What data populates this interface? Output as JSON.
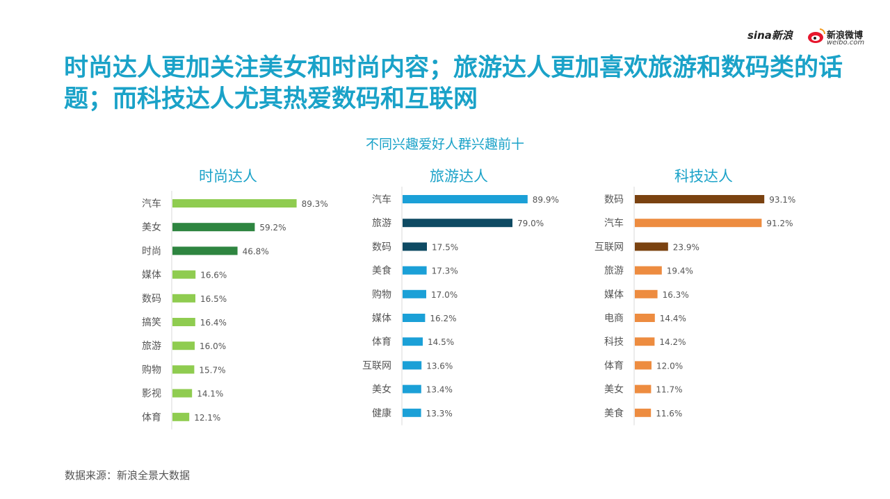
{
  "headline": "时尚达人更加关注美女和时尚内容；旅游达人更加喜欢旅游和数码类的话题；而科技达人尤其热爱数码和互联网",
  "logos": {
    "sina": "sina新浪",
    "weibo_cn": "新浪微博",
    "weibo_url": "weibo.com"
  },
  "subtitle": "不同兴趣爱好人群兴趣前十",
  "source": "数据来源：新浪全景大数据",
  "colors": {
    "title": "#1aa2c8",
    "fashion_light": "#8fcc50",
    "fashion_dark": "#2e8540",
    "travel_light": "#1ba0d7",
    "travel_dark": "#0e4a63",
    "tech_light": "#ed8c40",
    "tech_dark": "#7a4210"
  },
  "chart_data": [
    {
      "type": "bar",
      "title": "时尚达人",
      "categories": [
        "汽车",
        "美女",
        "时尚",
        "媒体",
        "数码",
        "搞笑",
        "旅游",
        "购物",
        "影视",
        "体育"
      ],
      "values": [
        89.3,
        59.2,
        46.8,
        16.6,
        16.5,
        16.4,
        16.0,
        15.7,
        14.1,
        12.1
      ],
      "labels": [
        "89.3%",
        "59.2%",
        "46.8%",
        "16.6%",
        "16.5%",
        "16.4%",
        "16.0%",
        "15.7%",
        "14.1%",
        "12.1%"
      ],
      "highlight": [
        false,
        true,
        true,
        false,
        false,
        false,
        false,
        false,
        false,
        false
      ],
      "color": "#8fcc50",
      "highlight_color": "#2e8540"
    },
    {
      "type": "bar",
      "title": "旅游达人",
      "categories": [
        "汽车",
        "旅游",
        "数码",
        "美食",
        "购物",
        "媒体",
        "体育",
        "互联网",
        "美女",
        "健康"
      ],
      "values": [
        89.9,
        79.0,
        17.5,
        17.3,
        17.0,
        16.2,
        14.5,
        13.6,
        13.4,
        13.3
      ],
      "labels": [
        "89.9%",
        "79.0%",
        "17.5%",
        "17.3%",
        "17.0%",
        "16.2%",
        "14.5%",
        "13.6%",
        "13.4%",
        "13.3%"
      ],
      "highlight": [
        false,
        true,
        true,
        false,
        false,
        false,
        false,
        false,
        false,
        false
      ],
      "color": "#1ba0d7",
      "highlight_color": "#0e4a63"
    },
    {
      "type": "bar",
      "title": "科技达人",
      "categories": [
        "数码",
        "汽车",
        "互联网",
        "旅游",
        "媒体",
        "电商",
        "科技",
        "体育",
        "美女",
        "美食"
      ],
      "values": [
        93.1,
        91.2,
        23.9,
        19.4,
        16.3,
        14.4,
        14.2,
        12.0,
        11.7,
        11.6
      ],
      "labels": [
        "93.1%",
        "91.2%",
        "23.9%",
        "19.4%",
        "16.3%",
        "14.4%",
        "14.2%",
        "12.0%",
        "11.7%",
        "11.6%"
      ],
      "highlight": [
        true,
        false,
        true,
        false,
        false,
        false,
        false,
        false,
        false,
        false
      ],
      "color": "#ed8c40",
      "highlight_color": "#7a4210"
    }
  ]
}
